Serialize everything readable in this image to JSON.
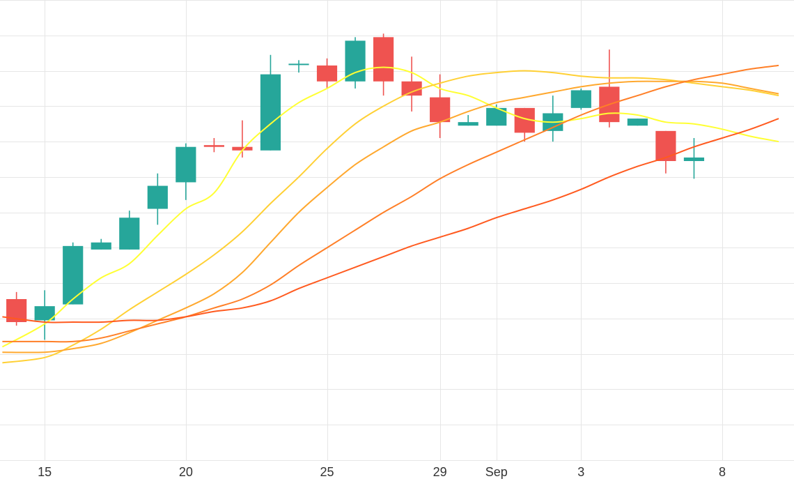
{
  "chart_data": {
    "type": "candlestick",
    "title": "",
    "xlabel": "",
    "ylabel": "",
    "grid": true,
    "legend": "none",
    "x_axis": {
      "tick_labels": [
        {
          "label": "15",
          "date": "2023-08-15"
        },
        {
          "label": "20",
          "date": "2023-08-20"
        },
        {
          "label": "25",
          "date": "2023-08-25"
        },
        {
          "label": "29",
          "date": "2023-08-29"
        },
        {
          "label": "Sep",
          "date": "2023-08-31"
        },
        {
          "label": "3",
          "date": "2023-09-03"
        },
        {
          "label": "8",
          "date": "2023-09-08"
        }
      ],
      "range": [
        "2023-08-13T10:00",
        "2023-09-10T13:00"
      ]
    },
    "y_axis": {
      "range": [
        0,
        13
      ],
      "gridlines": [
        0,
        1,
        2,
        3,
        4,
        5,
        6,
        7,
        8,
        9,
        10,
        11,
        12,
        13
      ]
    },
    "colors": {
      "increasing": "#26a69a",
      "decreasing": "#ef5350",
      "ma_lines": [
        "#ffff33",
        "#ffd034",
        "#ffa82e",
        "#ff7f27",
        "#ff5a1f"
      ]
    },
    "candles": [
      {
        "date": "2023-08-14",
        "open": 4.55,
        "high": 4.75,
        "low": 3.8,
        "close": 3.9
      },
      {
        "date": "2023-08-15",
        "open": 3.95,
        "high": 4.8,
        "low": 3.4,
        "close": 4.35
      },
      {
        "date": "2023-08-16",
        "open": 4.4,
        "high": 6.15,
        "low": 4.4,
        "close": 6.05
      },
      {
        "date": "2023-08-17",
        "open": 5.95,
        "high": 6.25,
        "low": 5.95,
        "close": 6.15
      },
      {
        "date": "2023-08-18",
        "open": 5.95,
        "high": 7.05,
        "low": 5.95,
        "close": 6.85
      },
      {
        "date": "2023-08-19",
        "open": 7.1,
        "high": 8.1,
        "low": 6.65,
        "close": 7.75
      },
      {
        "date": "2023-08-20",
        "open": 7.85,
        "high": 8.95,
        "low": 7.35,
        "close": 8.85
      },
      {
        "date": "2023-08-21",
        "open": 8.9,
        "high": 9.1,
        "low": 8.7,
        "close": 8.85
      },
      {
        "date": "2023-08-22",
        "open": 8.85,
        "high": 9.6,
        "low": 8.55,
        "close": 8.75
      },
      {
        "date": "2023-08-23",
        "open": 8.75,
        "high": 11.45,
        "low": 8.75,
        "close": 10.9
      },
      {
        "date": "2023-08-24",
        "open": 11.2,
        "high": 11.3,
        "low": 10.95,
        "close": 11.2
      },
      {
        "date": "2023-08-25",
        "open": 11.15,
        "high": 11.35,
        "low": 10.5,
        "close": 10.7
      },
      {
        "date": "2023-08-26",
        "open": 10.7,
        "high": 11.95,
        "low": 10.5,
        "close": 11.85
      },
      {
        "date": "2023-08-27",
        "open": 11.95,
        "high": 12.05,
        "low": 10.3,
        "close": 10.7
      },
      {
        "date": "2023-08-28",
        "open": 10.7,
        "high": 11.4,
        "low": 9.85,
        "close": 10.3
      },
      {
        "date": "2023-08-29",
        "open": 10.25,
        "high": 10.9,
        "low": 9.1,
        "close": 9.55
      },
      {
        "date": "2023-08-30",
        "open": 9.45,
        "high": 9.75,
        "low": 9.45,
        "close": 9.55
      },
      {
        "date": "2023-08-31",
        "open": 9.45,
        "high": 10.05,
        "low": 9.45,
        "close": 9.95
      },
      {
        "date": "2023-09-01",
        "open": 9.95,
        "high": 9.95,
        "low": 9.0,
        "close": 9.25
      },
      {
        "date": "2023-09-02",
        "open": 9.3,
        "high": 10.3,
        "low": 9.0,
        "close": 9.8
      },
      {
        "date": "2023-09-03",
        "open": 9.95,
        "high": 10.5,
        "low": 9.9,
        "close": 10.45
      },
      {
        "date": "2023-09-04",
        "open": 10.55,
        "high": 11.6,
        "low": 9.4,
        "close": 9.55
      },
      {
        "date": "2023-09-05",
        "open": 9.45,
        "high": 9.65,
        "low": 9.45,
        "close": 9.65
      },
      {
        "date": "2023-09-06",
        "open": 9.3,
        "high": 9.3,
        "low": 8.1,
        "close": 8.45
      },
      {
        "date": "2023-09-07",
        "open": 8.45,
        "high": 9.1,
        "low": 7.95,
        "close": 8.55
      }
    ],
    "series": [
      {
        "type": "line",
        "color": "#ffff33",
        "x": [
          "2023-08-13T12:00",
          "2023-08-15",
          "2023-08-16",
          "2023-08-17",
          "2023-08-18",
          "2023-08-19",
          "2023-08-20",
          "2023-08-21",
          "2023-08-22",
          "2023-08-23",
          "2023-08-24",
          "2023-08-25",
          "2023-08-26",
          "2023-08-27",
          "2023-08-28",
          "2023-08-29",
          "2023-08-30",
          "2023-08-31",
          "2023-09-01",
          "2023-09-02",
          "2023-09-03",
          "2023-09-04",
          "2023-09-05",
          "2023-09-06",
          "2023-09-07",
          "2023-09-08",
          "2023-09-09",
          "2023-09-10"
        ],
        "y": [
          3.2,
          3.85,
          4.55,
          5.15,
          5.55,
          6.35,
          7.1,
          7.55,
          8.75,
          9.5,
          10.1,
          10.5,
          10.95,
          11.1,
          10.95,
          10.5,
          10.3,
          9.95,
          9.65,
          9.55,
          9.65,
          9.8,
          9.75,
          9.55,
          9.5,
          9.35,
          9.15,
          9.0
        ]
      },
      {
        "type": "line",
        "color": "#ffd034",
        "x": [
          "2023-08-13T12:00",
          "2023-08-15",
          "2023-08-16",
          "2023-08-17",
          "2023-08-18",
          "2023-08-19",
          "2023-08-20",
          "2023-08-21",
          "2023-08-22",
          "2023-08-23",
          "2023-08-24",
          "2023-08-25",
          "2023-08-26",
          "2023-08-27",
          "2023-08-28",
          "2023-08-29",
          "2023-08-30",
          "2023-08-31",
          "2023-09-01",
          "2023-09-02",
          "2023-09-03",
          "2023-09-04",
          "2023-09-05",
          "2023-09-06",
          "2023-09-07",
          "2023-09-08",
          "2023-09-09",
          "2023-09-10"
        ],
        "y": [
          2.75,
          2.9,
          3.25,
          3.7,
          4.25,
          4.75,
          5.25,
          5.8,
          6.45,
          7.25,
          8.0,
          8.8,
          9.5,
          10.0,
          10.4,
          10.65,
          10.85,
          10.95,
          11.0,
          10.95,
          10.85,
          10.8,
          10.8,
          10.75,
          10.65,
          10.55,
          10.45,
          10.3
        ]
      },
      {
        "type": "line",
        "color": "#ffa82e",
        "x": [
          "2023-08-13T12:00",
          "2023-08-15",
          "2023-08-16",
          "2023-08-17",
          "2023-08-18",
          "2023-08-19",
          "2023-08-20",
          "2023-08-21",
          "2023-08-22",
          "2023-08-23",
          "2023-08-24",
          "2023-08-25",
          "2023-08-26",
          "2023-08-27",
          "2023-08-28",
          "2023-08-29",
          "2023-08-30",
          "2023-08-31",
          "2023-09-01",
          "2023-09-02",
          "2023-09-03",
          "2023-09-04",
          "2023-09-05",
          "2023-09-06",
          "2023-09-07",
          "2023-09-08",
          "2023-09-09",
          "2023-09-10"
        ],
        "y": [
          3.05,
          3.05,
          3.15,
          3.3,
          3.6,
          3.95,
          4.3,
          4.7,
          5.3,
          6.15,
          7.0,
          7.7,
          8.35,
          8.85,
          9.3,
          9.55,
          9.85,
          10.1,
          10.25,
          10.4,
          10.55,
          10.65,
          10.7,
          10.7,
          10.7,
          10.65,
          10.5,
          10.35
        ]
      },
      {
        "type": "line",
        "color": "#ff7f27",
        "x": [
          "2023-08-13T12:00",
          "2023-08-15",
          "2023-08-16",
          "2023-08-17",
          "2023-08-18",
          "2023-08-19",
          "2023-08-20",
          "2023-08-21",
          "2023-08-22",
          "2023-08-23",
          "2023-08-24",
          "2023-08-25",
          "2023-08-26",
          "2023-08-27",
          "2023-08-28",
          "2023-08-29",
          "2023-08-30",
          "2023-08-31",
          "2023-09-01",
          "2023-09-02",
          "2023-09-03",
          "2023-09-04",
          "2023-09-05",
          "2023-09-06",
          "2023-09-07",
          "2023-09-08",
          "2023-09-09",
          "2023-09-10"
        ],
        "y": [
          3.35,
          3.35,
          3.35,
          3.45,
          3.65,
          3.85,
          4.05,
          4.3,
          4.55,
          4.95,
          5.5,
          6.0,
          6.5,
          7.0,
          7.45,
          7.95,
          8.35,
          8.7,
          9.05,
          9.4,
          9.75,
          10.05,
          10.3,
          10.55,
          10.75,
          10.9,
          11.05,
          11.15
        ]
      },
      {
        "type": "line",
        "color": "#ff5a1f",
        "x": [
          "2023-08-13T12:00",
          "2023-08-15",
          "2023-08-16",
          "2023-08-17",
          "2023-08-18",
          "2023-08-19",
          "2023-08-20",
          "2023-08-21",
          "2023-08-22",
          "2023-08-23",
          "2023-08-24",
          "2023-08-25",
          "2023-08-26",
          "2023-08-27",
          "2023-08-28",
          "2023-08-29",
          "2023-08-30",
          "2023-08-31",
          "2023-09-01",
          "2023-09-02",
          "2023-09-03",
          "2023-09-04",
          "2023-09-05",
          "2023-09-06",
          "2023-09-07",
          "2023-09-08",
          "2023-09-09",
          "2023-09-10"
        ],
        "y": [
          4.05,
          3.9,
          3.9,
          3.9,
          3.95,
          3.95,
          4.05,
          4.2,
          4.3,
          4.5,
          4.85,
          5.15,
          5.45,
          5.75,
          6.05,
          6.3,
          6.55,
          6.85,
          7.1,
          7.35,
          7.65,
          8.0,
          8.3,
          8.55,
          8.85,
          9.1,
          9.35,
          9.65
        ]
      }
    ]
  }
}
